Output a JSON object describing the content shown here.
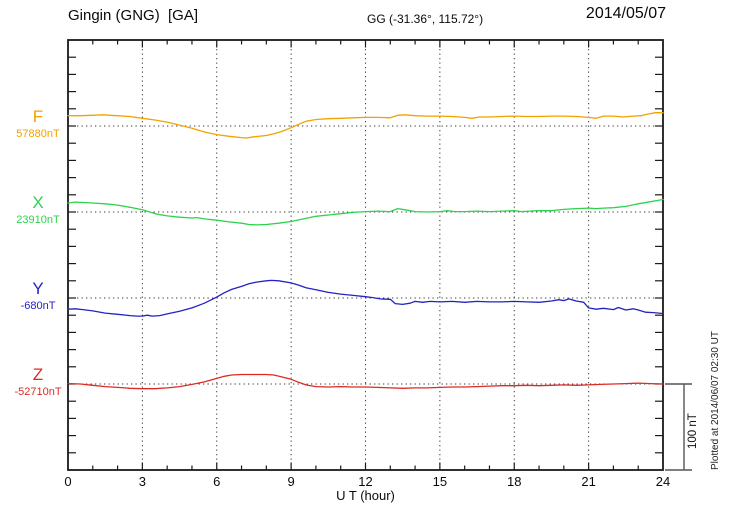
{
  "header": {
    "station": "Gingin (GNG)  [GA]",
    "coords": "GG (-31.36°, 115.72°)",
    "date": "2014/05/07"
  },
  "axis": {
    "x_label": "U T (hour)",
    "x_tick_labels": [
      "0",
      "3",
      "6",
      "9",
      "12",
      "15",
      "18",
      "21",
      "24"
    ]
  },
  "scale_bar": {
    "label": "100 nT"
  },
  "note": "Plotted at 2014/06/07 02:30 UT",
  "channels": [
    {
      "letter": "F",
      "value_label": "57880nT",
      "color": "#f2a200"
    },
    {
      "letter": "X",
      "value_label": "23910nT",
      "color": "#2ed24e"
    },
    {
      "letter": "Y",
      "value_label": "-680nT",
      "color": "#2323c3"
    },
    {
      "letter": "Z",
      "value_label": "-52710nT",
      "color": "#de2a25"
    }
  ],
  "chart_data": {
    "type": "line",
    "title": "Gingin (GNG)  [GA]",
    "xlabel": "U T (hour)",
    "x_range": [
      0,
      24
    ],
    "x_major_ticks": [
      0,
      3,
      6,
      9,
      12,
      15,
      18,
      21,
      24
    ],
    "x_minor_tick_interval_hours": 1,
    "y_tick_interval_nT": 20,
    "scale_bar_nT": 100,
    "grid": "dotted vertical every 3 h; dotted horizontal baseline per channel",
    "series": [
      {
        "name": "F",
        "baseline_nT": 57880,
        "color": "#f2a200",
        "points_hour_offsetnT": [
          [
            0,
            12
          ],
          [
            0.5,
            12
          ],
          [
            1,
            12.5
          ],
          [
            1.4,
            13
          ],
          [
            1.7,
            12.5
          ],
          [
            2,
            12
          ],
          [
            2.5,
            11
          ],
          [
            3,
            9
          ],
          [
            3.5,
            7
          ],
          [
            4,
            4.5
          ],
          [
            4.5,
            1
          ],
          [
            5,
            -2.5
          ],
          [
            5.5,
            -7
          ],
          [
            6,
            -10
          ],
          [
            6.5,
            -12
          ],
          [
            7,
            -13.5
          ],
          [
            7.2,
            -14
          ],
          [
            7.5,
            -12.5
          ],
          [
            8,
            -11
          ],
          [
            8.3,
            -9
          ],
          [
            8.6,
            -6.5
          ],
          [
            9,
            -2
          ],
          [
            9.3,
            2
          ],
          [
            9.6,
            5.5
          ],
          [
            10,
            7.5
          ],
          [
            10.5,
            8.5
          ],
          [
            11,
            9
          ],
          [
            11.5,
            9.5
          ],
          [
            12,
            10
          ],
          [
            12.5,
            10
          ],
          [
            13,
            9.5
          ],
          [
            13.3,
            12.5
          ],
          [
            13.6,
            13
          ],
          [
            14,
            12
          ],
          [
            14.5,
            11.5
          ],
          [
            15,
            11.5
          ],
          [
            15.5,
            11
          ],
          [
            16,
            10
          ],
          [
            16.3,
            9
          ],
          [
            16.6,
            10.5
          ],
          [
            17,
            10.5
          ],
          [
            17.5,
            11
          ],
          [
            18,
            11.5
          ],
          [
            18.5,
            11
          ],
          [
            19,
            11
          ],
          [
            19.5,
            11.5
          ],
          [
            20,
            11.5
          ],
          [
            20.5,
            11
          ],
          [
            21,
            10
          ],
          [
            21.3,
            9
          ],
          [
            21.6,
            11.5
          ],
          [
            22,
            11.5
          ],
          [
            22.4,
            10.5
          ],
          [
            22.8,
            11.5
          ],
          [
            23.1,
            12
          ],
          [
            23.4,
            14
          ],
          [
            23.7,
            15.5
          ],
          [
            24,
            15.5
          ]
        ]
      },
      {
        "name": "X",
        "baseline_nT": 23910,
        "color": "#2ed24e",
        "points_hour_offsetnT": [
          [
            0,
            10.5
          ],
          [
            0.3,
            11.5
          ],
          [
            0.6,
            11
          ],
          [
            1,
            10.5
          ],
          [
            1.5,
            9.5
          ],
          [
            2,
            8
          ],
          [
            2.5,
            5.5
          ],
          [
            3,
            2.5
          ],
          [
            3.3,
            0
          ],
          [
            3.6,
            -2.5
          ],
          [
            4,
            -4.5
          ],
          [
            4.5,
            -6
          ],
          [
            5,
            -7
          ],
          [
            5.2,
            -6.5
          ],
          [
            5.5,
            -8
          ],
          [
            6,
            -9.5
          ],
          [
            6.5,
            -11.5
          ],
          [
            7,
            -13
          ],
          [
            7.3,
            -14.5
          ],
          [
            7.6,
            -15
          ],
          [
            8,
            -14.5
          ],
          [
            8.5,
            -13
          ],
          [
            9,
            -11
          ],
          [
            9.5,
            -8
          ],
          [
            10,
            -5
          ],
          [
            10.5,
            -3.5
          ],
          [
            11,
            -2
          ],
          [
            11.5,
            -0.5
          ],
          [
            12,
            0.5
          ],
          [
            12.5,
            1
          ],
          [
            13,
            0.5
          ],
          [
            13.3,
            4
          ],
          [
            13.6,
            2.5
          ],
          [
            14,
            0.5
          ],
          [
            14.5,
            0
          ],
          [
            15,
            0.5
          ],
          [
            15.3,
            1.5
          ],
          [
            15.6,
            0.5
          ],
          [
            16,
            0.5
          ],
          [
            16.5,
            1
          ],
          [
            17,
            0.5
          ],
          [
            17.5,
            1
          ],
          [
            18,
            1.5
          ],
          [
            18.3,
            0.5
          ],
          [
            18.6,
            1
          ],
          [
            19,
            1.5
          ],
          [
            19.5,
            1.5
          ],
          [
            20,
            3
          ],
          [
            20.5,
            4
          ],
          [
            21,
            4.5
          ],
          [
            21.3,
            4
          ],
          [
            21.6,
            4.5
          ],
          [
            22,
            5
          ],
          [
            22.5,
            6.5
          ],
          [
            23,
            9.5
          ],
          [
            23.5,
            12
          ],
          [
            24,
            14.5
          ]
        ]
      },
      {
        "name": "Y",
        "baseline_nT": -680,
        "color": "#2323c3",
        "points_hour_offsetnT": [
          [
            0,
            -13
          ],
          [
            0.3,
            -12.5
          ],
          [
            0.6,
            -13.5
          ],
          [
            1,
            -15
          ],
          [
            1.5,
            -17.5
          ],
          [
            2,
            -19
          ],
          [
            2.5,
            -20.5
          ],
          [
            2.8,
            -21
          ],
          [
            3,
            -21
          ],
          [
            3.2,
            -20
          ],
          [
            3.4,
            -21
          ],
          [
            3.7,
            -20.5
          ],
          [
            4,
            -18.5
          ],
          [
            4.5,
            -15.5
          ],
          [
            5,
            -11.5
          ],
          [
            5.5,
            -6
          ],
          [
            6,
            1
          ],
          [
            6.3,
            6
          ],
          [
            6.6,
            10
          ],
          [
            7,
            13.5
          ],
          [
            7.3,
            16.5
          ],
          [
            7.6,
            18.5
          ],
          [
            8,
            20
          ],
          [
            8.2,
            20.5
          ],
          [
            8.5,
            20
          ],
          [
            9,
            17.5
          ],
          [
            9.3,
            15
          ],
          [
            9.6,
            12
          ],
          [
            10,
            9.5
          ],
          [
            10.5,
            6.5
          ],
          [
            11,
            4.5
          ],
          [
            11.5,
            3
          ],
          [
            12,
            1.5
          ],
          [
            12.3,
            0.5
          ],
          [
            12.6,
            -1
          ],
          [
            13,
            -1.5
          ],
          [
            13.2,
            -6.5
          ],
          [
            13.5,
            -7.5
          ],
          [
            13.8,
            -6
          ],
          [
            14,
            -4
          ],
          [
            14.3,
            -5
          ],
          [
            14.6,
            -4
          ],
          [
            15,
            -4.5
          ],
          [
            15.5,
            -4
          ],
          [
            16,
            -5
          ],
          [
            16.5,
            -4
          ],
          [
            17,
            -4.5
          ],
          [
            17.5,
            -4.5
          ],
          [
            18,
            -4
          ],
          [
            18.5,
            -4.5
          ],
          [
            19,
            -5
          ],
          [
            19.5,
            -3.5
          ],
          [
            19.8,
            -2
          ],
          [
            20,
            -3
          ],
          [
            20.2,
            -1
          ],
          [
            20.5,
            -3.5
          ],
          [
            20.8,
            -5
          ],
          [
            21,
            -11.5
          ],
          [
            21.3,
            -13
          ],
          [
            21.6,
            -12
          ],
          [
            22,
            -13.5
          ],
          [
            22.2,
            -11
          ],
          [
            22.5,
            -14
          ],
          [
            22.8,
            -12.5
          ],
          [
            23,
            -14
          ],
          [
            23.3,
            -16.5
          ],
          [
            23.6,
            -17
          ],
          [
            24,
            -18
          ]
        ]
      },
      {
        "name": "Z",
        "baseline_nT": -52710,
        "color": "#de2a25",
        "points_hour_offsetnT": [
          [
            0,
            0.5
          ],
          [
            0.5,
            0
          ],
          [
            1,
            -1.5
          ],
          [
            1.5,
            -3
          ],
          [
            2,
            -4
          ],
          [
            2.5,
            -5
          ],
          [
            3,
            -5.5
          ],
          [
            3.5,
            -5.5
          ],
          [
            4,
            -4.5
          ],
          [
            4.5,
            -3
          ],
          [
            5,
            -0.5
          ],
          [
            5.5,
            2.5
          ],
          [
            6,
            6.5
          ],
          [
            6.3,
            9
          ],
          [
            6.6,
            10.5
          ],
          [
            7,
            11
          ],
          [
            7.5,
            11
          ],
          [
            8,
            11
          ],
          [
            8.3,
            10.5
          ],
          [
            8.6,
            8.5
          ],
          [
            9,
            5.5
          ],
          [
            9.3,
            2
          ],
          [
            9.6,
            -1
          ],
          [
            10,
            -3
          ],
          [
            10.5,
            -3.5
          ],
          [
            11,
            -3
          ],
          [
            11.5,
            -3.5
          ],
          [
            12,
            -3.5
          ],
          [
            12.5,
            -4
          ],
          [
            13,
            -4.5
          ],
          [
            13.5,
            -5
          ],
          [
            14,
            -4.5
          ],
          [
            14.5,
            -4.5
          ],
          [
            15,
            -4
          ],
          [
            15.5,
            -3.5
          ],
          [
            16,
            -3.5
          ],
          [
            16.5,
            -3
          ],
          [
            17,
            -2.5
          ],
          [
            17.5,
            -2
          ],
          [
            18,
            -2
          ],
          [
            18.5,
            -1.5
          ],
          [
            19,
            -2
          ],
          [
            19.5,
            -1.5
          ],
          [
            20,
            -1
          ],
          [
            20.5,
            -1.5
          ],
          [
            21,
            -1
          ],
          [
            21.5,
            -0.5
          ],
          [
            22,
            0
          ],
          [
            22.5,
            0.5
          ],
          [
            23,
            1
          ],
          [
            23.5,
            0.5
          ],
          [
            24,
            0
          ]
        ]
      }
    ]
  }
}
